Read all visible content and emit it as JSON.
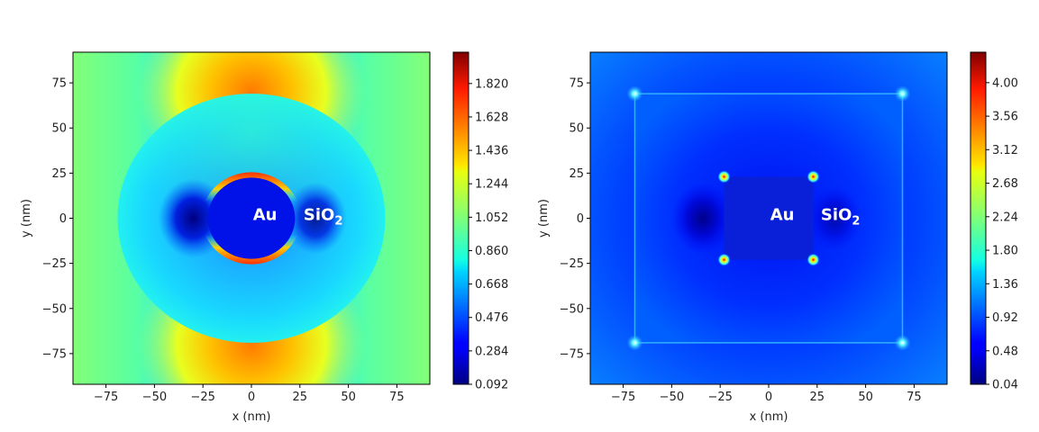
{
  "chart_data": [
    {
      "type": "heatmap",
      "geometry": "sphere",
      "xlabel": "x (nm)",
      "ylabel": "y (nm)",
      "xlim": [
        -92,
        92
      ],
      "ylim": [
        -92,
        92
      ],
      "xticks": [
        "−75",
        "−50",
        "−25",
        "0",
        "25",
        "50",
        "75"
      ],
      "yticks": [
        "75",
        "50",
        "25",
        "0",
        "−25",
        "−50",
        "−75"
      ],
      "core_radius": 22.5,
      "shell_radius": 69,
      "annotations": [
        {
          "text": "Au",
          "x": 7,
          "y": 2
        },
        {
          "text": "SiO",
          "sub": "2",
          "x": 37,
          "y": 2
        }
      ],
      "colorbar": {
        "colormap": "jet",
        "min": 0.092,
        "max": 2.0,
        "ticks": [
          "1.820",
          "1.628",
          "1.436",
          "1.244",
          "1.052",
          "0.860",
          "0.668",
          "0.476",
          "0.284",
          "0.092"
        ]
      }
    },
    {
      "type": "heatmap",
      "geometry": "cube",
      "xlabel": "x (nm)",
      "ylabel": "y (nm)",
      "xlim": [
        -92,
        92
      ],
      "ylim": [
        -92,
        92
      ],
      "xticks": [
        "−75",
        "−50",
        "−25",
        "0",
        "25",
        "50",
        "75"
      ],
      "yticks": [
        "75",
        "50",
        "25",
        "0",
        "−25",
        "−50",
        "−75"
      ],
      "core_half_width": 23,
      "shell_half_width": 69,
      "annotations": [
        {
          "text": "Au",
          "x": 7,
          "y": 2
        },
        {
          "text": "SiO",
          "sub": "2",
          "x": 37,
          "y": 2
        }
      ],
      "colorbar": {
        "colormap": "jet",
        "min": 0.04,
        "max": 4.4,
        "ticks": [
          "4.00",
          "3.56",
          "3.12",
          "2.68",
          "2.24",
          "1.80",
          "1.36",
          "0.92",
          "0.48",
          "0.04"
        ]
      }
    }
  ]
}
